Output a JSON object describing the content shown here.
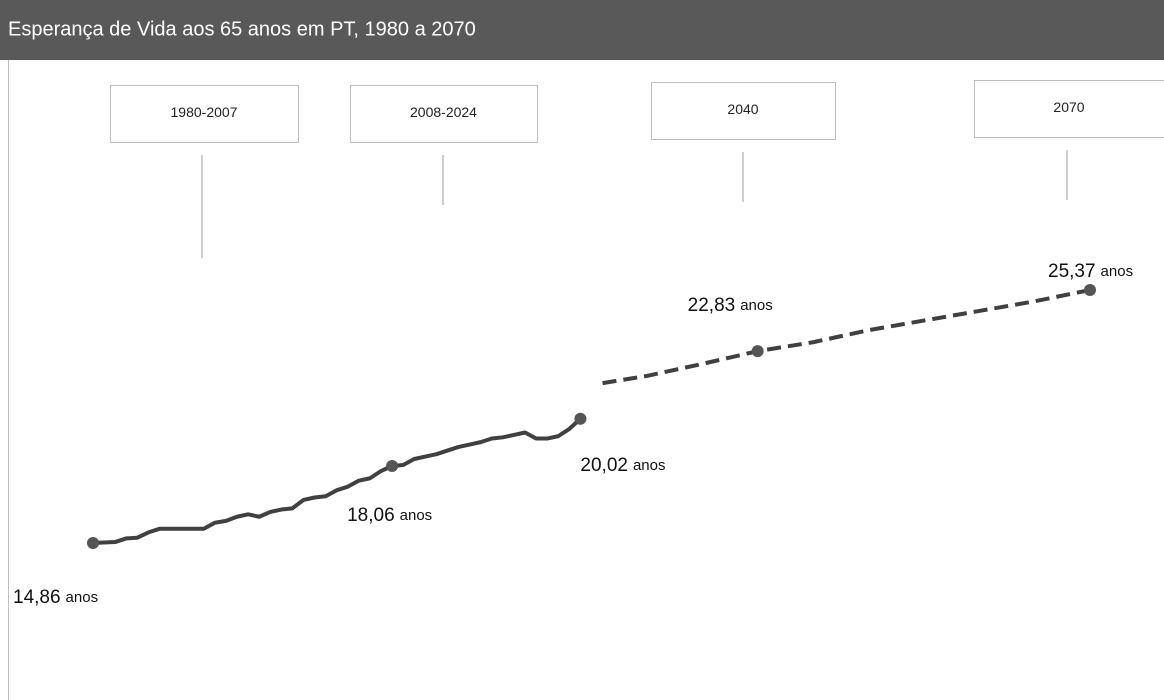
{
  "chart_data": {
    "type": "line",
    "title": "Esperança de Vida aos 65 anos em PT, 1980 a 2070",
    "periods": [
      "1980-2007",
      "2008-2024",
      "2040",
      "2070"
    ],
    "unit": "anos",
    "color": "#404040",
    "series": [
      {
        "dashed": false,
        "x": [
          1980,
          1981,
          1982,
          1983,
          1984,
          1985,
          1986,
          1987,
          1988,
          1989,
          1990,
          1991,
          1992,
          1993,
          1994,
          1995,
          1996,
          1997,
          1998,
          1999,
          2000,
          2001,
          2002,
          2003,
          2004,
          2005,
          2006,
          2007,
          2008,
          2009,
          2010,
          2011,
          2012,
          2013,
          2014,
          2015,
          2016,
          2017,
          2018,
          2019,
          2020,
          2021,
          2022,
          2023,
          2024
        ],
        "values": [
          14.86,
          14.88,
          14.9,
          15.05,
          15.08,
          15.3,
          15.45,
          15.45,
          15.45,
          15.45,
          15.45,
          15.7,
          15.78,
          15.95,
          16.05,
          15.95,
          16.15,
          16.25,
          16.3,
          16.65,
          16.75,
          16.8,
          17.05,
          17.2,
          17.45,
          17.55,
          17.85,
          18.06,
          18.1,
          18.35,
          18.45,
          18.55,
          18.7,
          18.85,
          18.95,
          19.05,
          19.2,
          19.25,
          19.35,
          19.45,
          19.2,
          19.2,
          19.3,
          19.6,
          20.02
        ],
        "value_labels": [
          "14,86",
          null,
          null,
          null,
          null,
          null,
          null,
          null,
          null,
          null,
          null,
          null,
          null,
          null,
          null,
          null,
          null,
          null,
          null,
          null,
          null,
          null,
          null,
          null,
          null,
          null,
          null,
          "18,06",
          null,
          null,
          null,
          null,
          null,
          null,
          null,
          null,
          null,
          null,
          null,
          null,
          null,
          null,
          null,
          null,
          "20,02"
        ]
      },
      {
        "dashed": true,
        "x": [
          2026,
          2030,
          2035,
          2040,
          2045,
          2050,
          2055,
          2060,
          2065,
          2070
        ],
        "values": [
          21.5,
          21.8,
          22.3,
          22.83,
          23.2,
          23.7,
          24.1,
          24.5,
          24.9,
          25.37
        ],
        "value_labels": [
          null,
          null,
          null,
          "22,83",
          null,
          null,
          null,
          null,
          null,
          "25,37"
        ]
      }
    ]
  }
}
